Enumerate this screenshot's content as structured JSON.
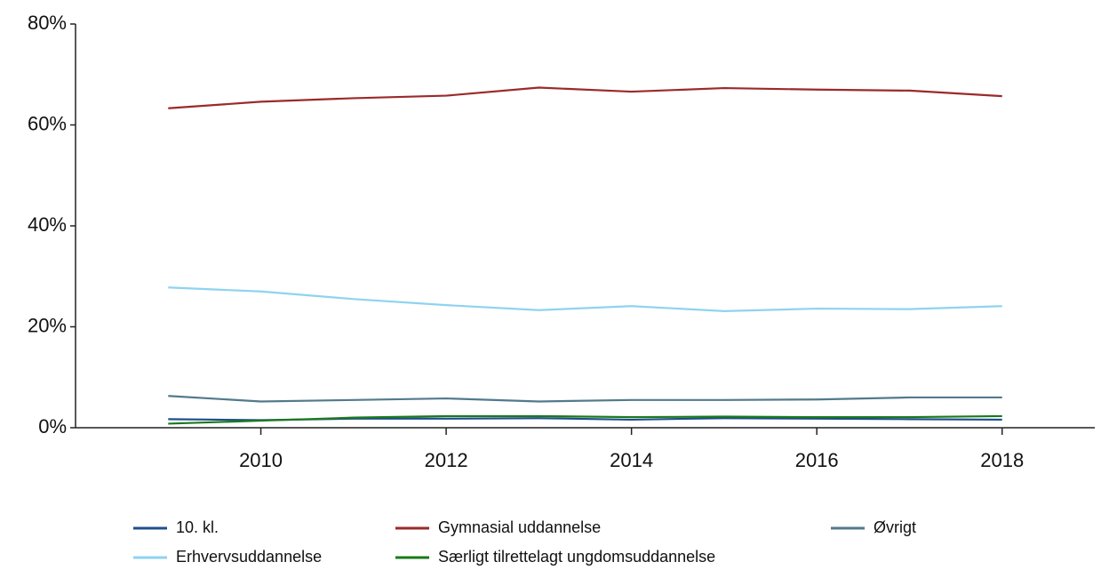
{
  "chart_data": {
    "type": "line",
    "x": [
      2009,
      2010,
      2011,
      2012,
      2013,
      2014,
      2015,
      2016,
      2017,
      2018
    ],
    "series": [
      {
        "name": "10. kl.",
        "color": "#1f4e8c",
        "values": [
          1.7,
          1.5,
          1.8,
          1.8,
          1.9,
          1.6,
          1.9,
          1.8,
          1.7,
          1.6
        ]
      },
      {
        "name": "Gymnasial uddannelse",
        "color": "#9b2a2a",
        "values": [
          63.3,
          64.6,
          65.3,
          65.8,
          67.4,
          66.6,
          67.3,
          67.0,
          66.8,
          65.7
        ]
      },
      {
        "name": "Øvrigt",
        "color": "#527a8c",
        "values": [
          6.3,
          5.2,
          5.5,
          5.8,
          5.2,
          5.5,
          5.5,
          5.6,
          6.0,
          6.0
        ]
      },
      {
        "name": "Erhvervsuddannelse",
        "color": "#8fd3f0",
        "values": [
          27.8,
          27.0,
          25.5,
          24.3,
          23.3,
          24.1,
          23.1,
          23.6,
          23.5,
          24.1
        ]
      },
      {
        "name": "Særligt tilrettelagt ungdomsuddannelse",
        "color": "#1a7a1a",
        "values": [
          0.8,
          1.4,
          2.0,
          2.3,
          2.3,
          2.1,
          2.2,
          2.1,
          2.1,
          2.3
        ]
      }
    ],
    "xlim": [
      2008,
      2019
    ],
    "xticks": [
      2010,
      2012,
      2014,
      2016,
      2018
    ],
    "ylim": [
      0,
      80
    ],
    "yticks": [
      {
        "value": 0,
        "label": "0%"
      },
      {
        "value": 20,
        "label": "20%"
      },
      {
        "value": 40,
        "label": "40%"
      },
      {
        "value": 60,
        "label": "60%"
      },
      {
        "value": 80,
        "label": "80%"
      }
    ],
    "grid": false,
    "legend": "bottom"
  }
}
